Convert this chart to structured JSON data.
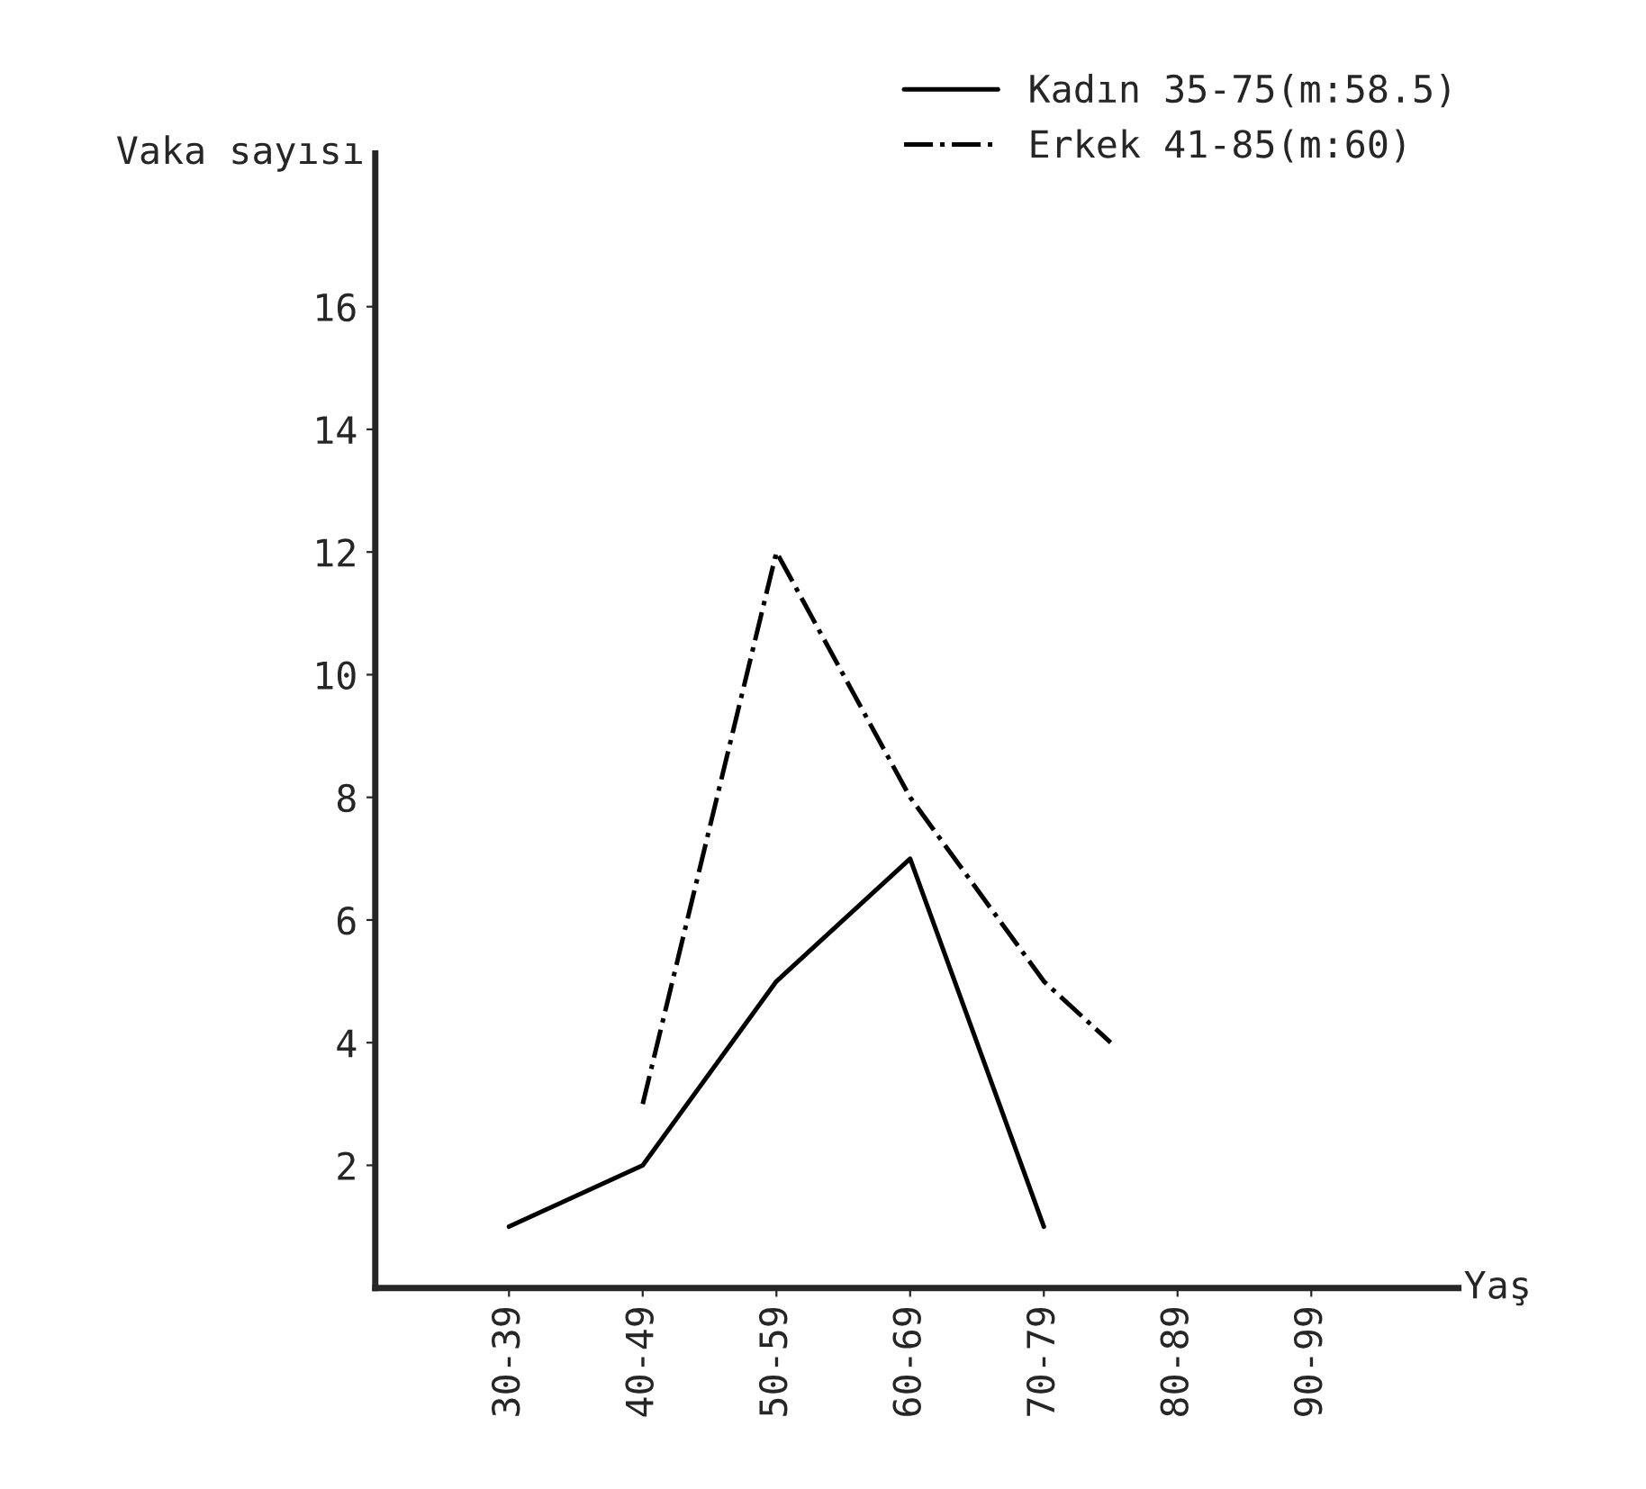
{
  "chart_data": {
    "type": "line",
    "xlabel": "Yaş",
    "ylabel": "Vaka sayısı",
    "categories": [
      "30-39",
      null,
      "40-49",
      null,
      "50-59",
      null,
      "60-69",
      null,
      "70-79",
      null,
      "80-89",
      null,
      "90-99"
    ],
    "ylim": [
      0,
      18.5
    ],
    "yticks": [
      2,
      4,
      6,
      8,
      10,
      12,
      14,
      16
    ],
    "series": [
      {
        "name": "Kadın 35-75(m:58.5)",
        "color": "#000000",
        "line_style": "solid",
        "values": [
          1,
          null,
          2,
          null,
          5,
          null,
          7,
          null,
          1,
          null,
          null,
          null,
          null
        ]
      },
      {
        "name": "Erkek 41-85(m:60)",
        "color": "#000000",
        "line_style": "dashdot",
        "values": [
          null,
          null,
          3,
          null,
          12,
          null,
          8,
          null,
          5,
          4,
          null,
          null,
          null
        ]
      }
    ],
    "grid": false,
    "legend": "top right",
    "marker": "none"
  }
}
